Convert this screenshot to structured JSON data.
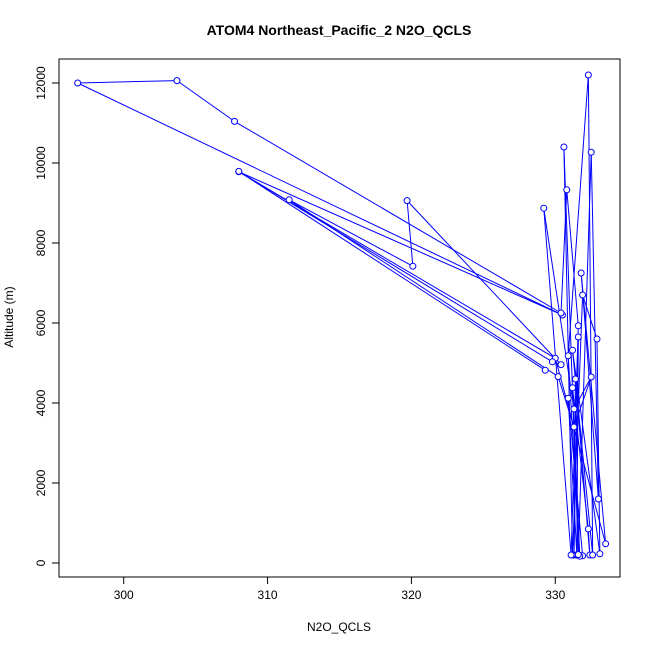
{
  "chart_data": {
    "type": "line",
    "title": "ATOM4 Northeast_Pacific_2 N2O_QCLS",
    "xlabel": "N2O_QCLS",
    "ylabel": "Altitude (m)",
    "xlim": [
      295.5,
      334.5
    ],
    "ylim": [
      -350,
      12600
    ],
    "x_ticks": [
      300,
      310,
      320,
      330
    ],
    "y_ticks": [
      0,
      2000,
      4000,
      6000,
      8000,
      10000,
      12000
    ],
    "grid": false,
    "legend": "none",
    "series": [
      {
        "color": "#0000ff",
        "points": [
          [
            331.9,
            180
          ],
          [
            330.9,
            4120
          ],
          [
            331.5,
            200
          ],
          [
            331.6,
            5650
          ],
          [
            331.3,
            200
          ],
          [
            331.4,
            4600
          ],
          [
            332.4,
            200
          ],
          [
            332.3,
            850
          ],
          [
            331.2,
            4380
          ],
          [
            331.7,
            170
          ],
          [
            330.9,
            5180
          ],
          [
            332.3,
            12200
          ],
          [
            332.6,
            200
          ],
          [
            331.2,
            5320
          ],
          [
            333.1,
            230
          ],
          [
            332.9,
            5600
          ],
          [
            331.9,
            6700
          ],
          [
            331.2,
            200
          ],
          [
            330.6,
            10400
          ],
          [
            331.6,
            210
          ],
          [
            332.5,
            10270
          ],
          [
            333.0,
            1600
          ],
          [
            331.8,
            7250
          ],
          [
            333.5,
            480
          ],
          [
            330.0,
            5120
          ],
          [
            308.0,
            9780
          ],
          [
            330.5,
            6200
          ],
          [
            296.8,
            12000
          ],
          [
            303.7,
            12060
          ],
          [
            307.7,
            11040
          ],
          [
            330.4,
            6250
          ],
          [
            330.8,
            9330
          ],
          [
            331.6,
            5930
          ],
          [
            331.1,
            200
          ],
          [
            329.2,
            8870
          ],
          [
            331.3,
            3850
          ],
          [
            332.5,
            4650
          ],
          [
            331.3,
            3400
          ],
          [
            330.2,
            4660
          ],
          [
            311.5,
            9080
          ],
          [
            320.1,
            7420
          ],
          [
            319.7,
            9060
          ],
          [
            330.4,
            4960
          ],
          [
            329.8,
            5030
          ],
          [
            308.0,
            9790
          ],
          [
            329.3,
            4820
          ]
        ]
      }
    ]
  }
}
